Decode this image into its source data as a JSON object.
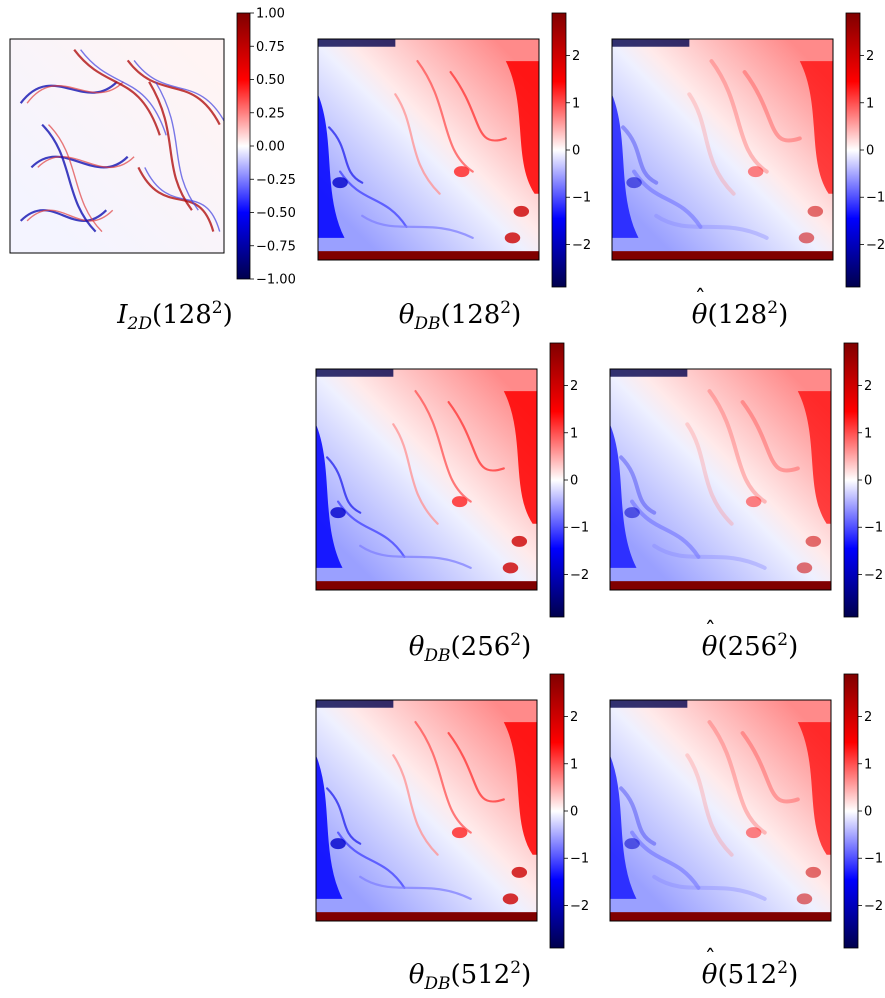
{
  "figure": {
    "colormap": "seismic",
    "colors": {
      "neg_dark": "#00004c",
      "neg": "#0000ff",
      "mid": "#ffffff",
      "pos": "#ff0000",
      "pos_dark": "#800000"
    }
  },
  "chart_data": [
    {
      "type": "heatmap",
      "id": "i2d_128",
      "caption": {
        "sym": "I",
        "sub": "2D",
        "res": "128",
        "exp": "2"
      },
      "colorbar": {
        "min": -1.0,
        "max": 1.0,
        "ticks": [
          1.0,
          0.75,
          0.5,
          0.25,
          0.0,
          -0.25,
          -0.5,
          -0.75,
          -1.0
        ],
        "tick_labels": [
          "1.00",
          "0.75",
          "0.50",
          "0.25",
          "0.00",
          "−0.25",
          "−0.50",
          "−0.75",
          "−1.00"
        ]
      }
    },
    {
      "type": "heatmap",
      "id": "theta_db_128",
      "caption": {
        "sym": "θ",
        "sub": "DB",
        "res": "128",
        "exp": "2"
      },
      "colorbar": {
        "min": -2.9,
        "max": 2.9,
        "ticks": [
          2,
          1,
          0,
          -1,
          -2
        ],
        "tick_labels": [
          "2",
          "1",
          "0",
          "−1",
          "−2"
        ]
      }
    },
    {
      "type": "heatmap",
      "id": "theta_hat_128",
      "caption": {
        "sym": "θ",
        "hat": true,
        "sub": "",
        "res": "128",
        "exp": "2"
      },
      "colorbar": {
        "min": -2.9,
        "max": 2.9,
        "ticks": [
          2,
          1,
          0,
          -1,
          -2
        ],
        "tick_labels": [
          "2",
          "1",
          "0",
          "−1",
          "−2"
        ]
      }
    },
    {
      "type": "heatmap",
      "id": "theta_db_256",
      "caption": {
        "sym": "θ",
        "sub": "DB",
        "res": "256",
        "exp": "2"
      },
      "colorbar": {
        "min": -2.9,
        "max": 2.9,
        "ticks": [
          2,
          1,
          0,
          -1,
          -2
        ],
        "tick_labels": [
          "2",
          "1",
          "0",
          "−1",
          "−2"
        ]
      }
    },
    {
      "type": "heatmap",
      "id": "theta_hat_256",
      "caption": {
        "sym": "θ",
        "hat": true,
        "sub": "",
        "res": "256",
        "exp": "2"
      },
      "colorbar": {
        "min": -2.9,
        "max": 2.9,
        "ticks": [
          2,
          1,
          0,
          -1,
          -2
        ],
        "tick_labels": [
          "2",
          "1",
          "0",
          "−1",
          "−2"
        ]
      }
    },
    {
      "type": "heatmap",
      "id": "theta_db_512",
      "caption": {
        "sym": "θ",
        "sub": "DB",
        "res": "512",
        "exp": "2"
      },
      "colorbar": {
        "min": -2.9,
        "max": 2.9,
        "ticks": [
          2,
          1,
          0,
          -1,
          -2
        ],
        "tick_labels": [
          "2",
          "1",
          "0",
          "−1",
          "−2"
        ]
      }
    },
    {
      "type": "heatmap",
      "id": "theta_hat_512",
      "caption": {
        "sym": "θ",
        "hat": true,
        "sub": "",
        "res": "512",
        "exp": "2"
      },
      "colorbar": {
        "min": -2.9,
        "max": 2.9,
        "ticks": [
          2,
          1,
          0,
          -1,
          -2
        ],
        "tick_labels": [
          "2",
          "1",
          "0",
          "−1",
          "−2"
        ]
      }
    }
  ]
}
